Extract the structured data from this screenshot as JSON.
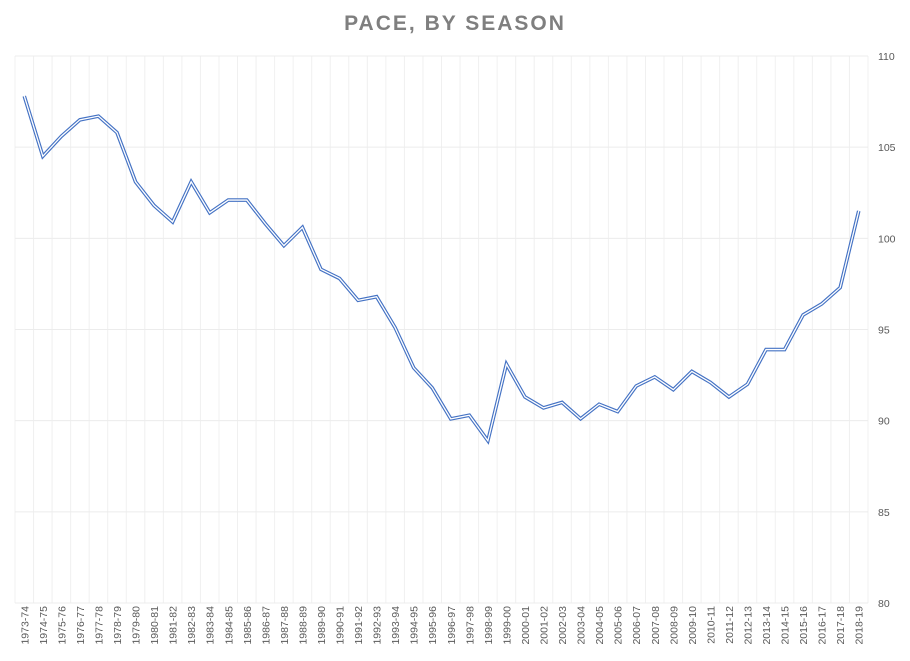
{
  "chart_data": {
    "type": "line",
    "title": "PACE, BY SEASON",
    "xlabel": "",
    "ylabel": "",
    "ylim": [
      80,
      110
    ],
    "yticks": [
      80,
      85,
      90,
      95,
      100,
      105,
      110
    ],
    "y_axis_side": "right",
    "grid": true,
    "legend": "none",
    "line_color": "#4472c4",
    "categories": [
      "1973-74",
      "1974-75",
      "1975-76",
      "1976-77",
      "1977-78",
      "1978-79",
      "1979-80",
      "1980-81",
      "1981-82",
      "1982-83",
      "1983-84",
      "1984-85",
      "1985-86",
      "1986-87",
      "1987-88",
      "1988-89",
      "1989-90",
      "1990-91",
      "1991-92",
      "1992-93",
      "1993-94",
      "1994-95",
      "1995-96",
      "1996-97",
      "1997-98",
      "1998-99",
      "1999-00",
      "2000-01",
      "2001-02",
      "2002-03",
      "2003-04",
      "2004-05",
      "2005-06",
      "2006-07",
      "2007-08",
      "2008-09",
      "2009-10",
      "2010-11",
      "2011-12",
      "2012-13",
      "2013-14",
      "2014-15",
      "2015-16",
      "2016-17",
      "2017-18",
      "2018-19"
    ],
    "series": [
      {
        "values": [
          107.8,
          104.5,
          105.6,
          106.5,
          106.7,
          105.8,
          103.1,
          101.8,
          100.9,
          103.1,
          101.4,
          102.1,
          102.1,
          100.8,
          99.6,
          100.6,
          98.3,
          97.8,
          96.6,
          96.8,
          95.1,
          92.9,
          91.8,
          90.1,
          90.3,
          88.9,
          93.1,
          91.3,
          90.7,
          91.0,
          90.1,
          90.9,
          90.5,
          91.9,
          92.4,
          91.7,
          92.7,
          92.1,
          91.3,
          92.0,
          93.9,
          93.9,
          95.8,
          96.4,
          97.3,
          101.5
        ]
      }
    ]
  }
}
